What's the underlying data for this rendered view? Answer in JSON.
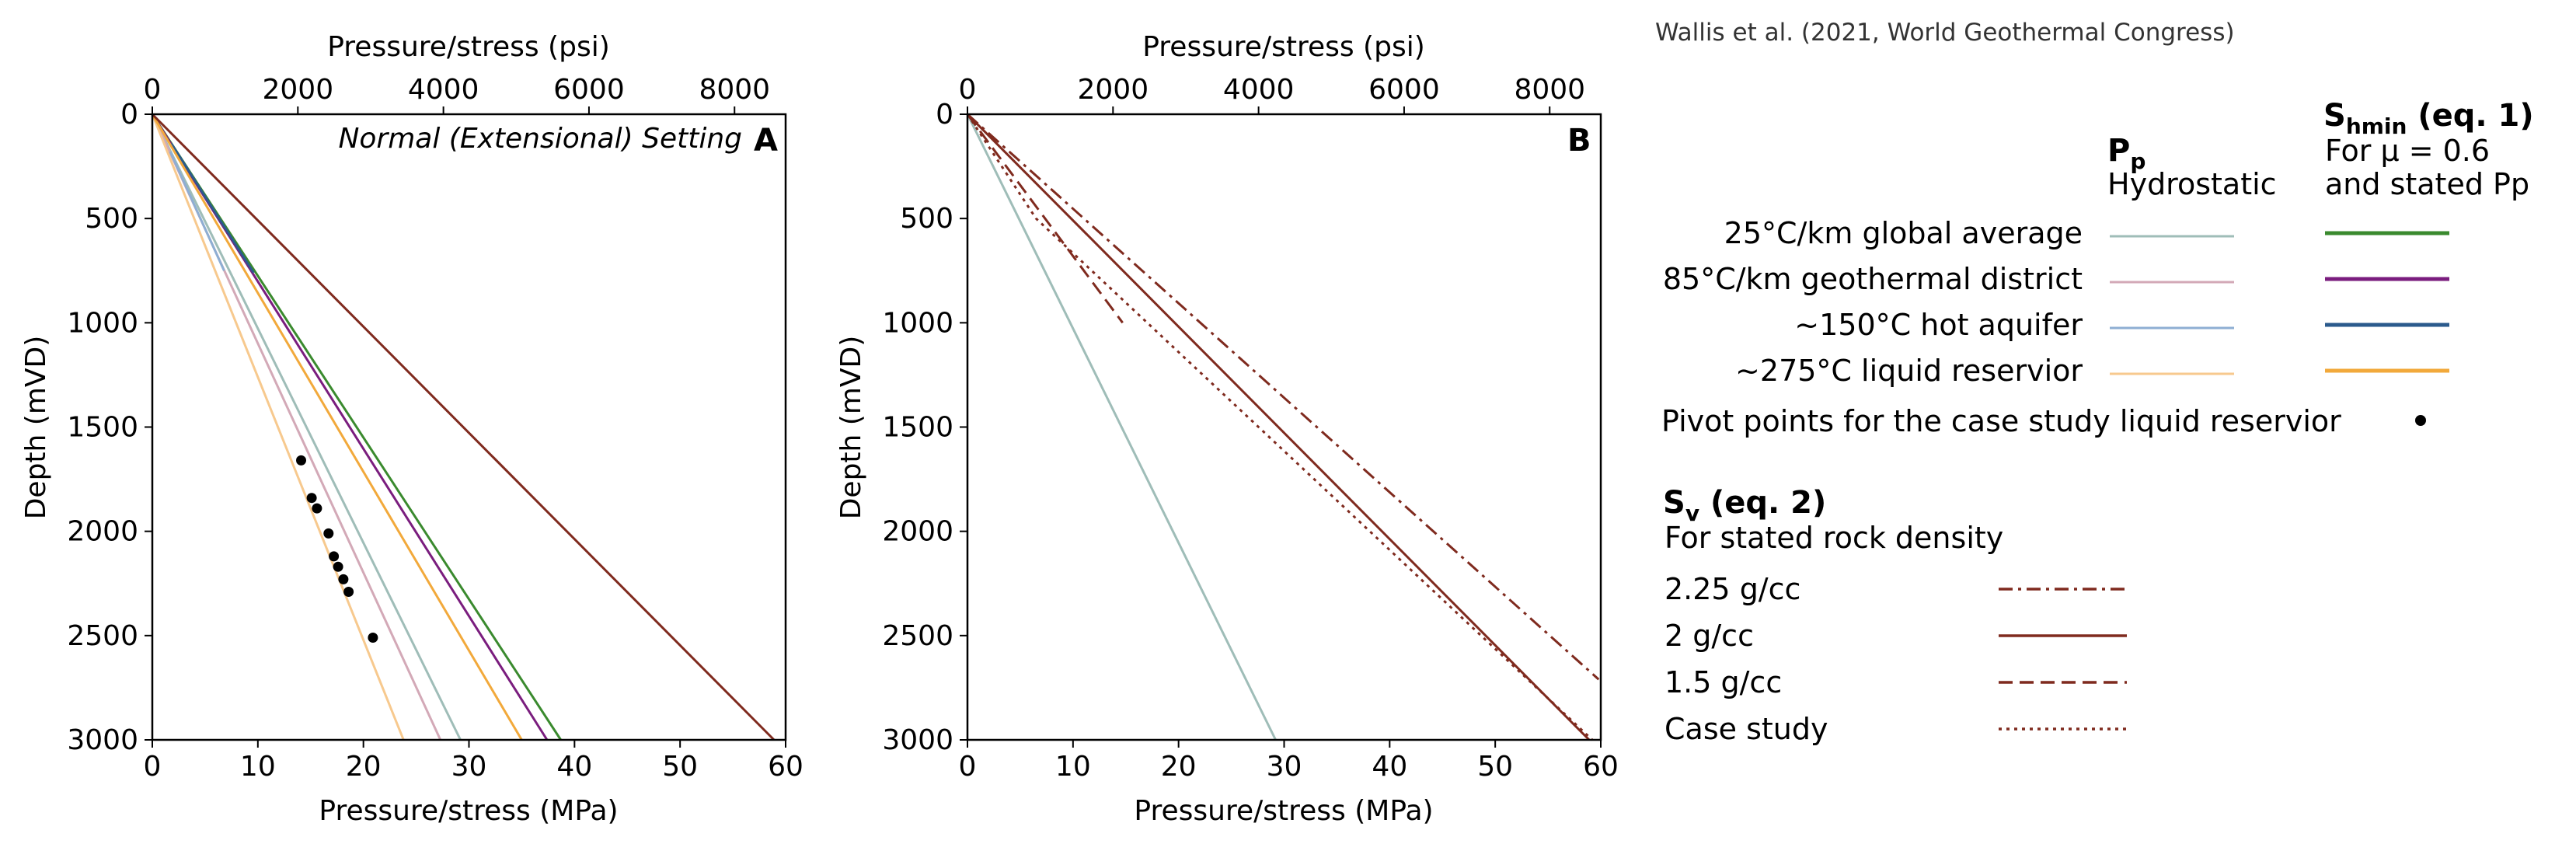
{
  "citation": "Wallis et al. (2021, World Geothermal Congress)",
  "chart_data": [
    {
      "panel": "A",
      "type": "line",
      "annotation": "Normal (Extensional) Setting",
      "xlabel": "Pressure/stress (MPa)",
      "ylabel": "Depth (mVD)",
      "top_xlabel": "Pressure/stress (psi)",
      "xlim": [
        0,
        60
      ],
      "ylim": [
        3000,
        0
      ],
      "top_xlim_psi": [
        0,
        8702
      ],
      "xticks": [
        "0",
        "10",
        "20",
        "30",
        "40",
        "50",
        "60"
      ],
      "yticks": [
        "0",
        "500",
        "1000",
        "1500",
        "2000",
        "2500",
        "3000"
      ],
      "top_xticks": [
        "0",
        "2000",
        "4000",
        "6000",
        "8000"
      ],
      "series": [
        {
          "name": "25°C/km global average",
          "group": "Pp Hydrostatic",
          "color": "#9fbdb8",
          "x": [
            0,
            29.2
          ],
          "y": [
            0,
            3000
          ]
        },
        {
          "name": "85°C/km geothermal district",
          "group": "Pp Hydrostatic",
          "color": "#d3a9b7",
          "x": [
            0,
            27.3
          ],
          "y": [
            0,
            3000
          ]
        },
        {
          "name": "~150°C hot aquifer",
          "group": "Pp Hydrostatic",
          "color": "#8eaed3",
          "x": [
            1.7,
            6.8
          ],
          "y": [
            180,
            750
          ]
        },
        {
          "name": "~275°C liquid reservior",
          "group": "Pp Hydrostatic",
          "color": "#f7c98e",
          "x": [
            0,
            23.8
          ],
          "y": [
            0,
            3000
          ]
        },
        {
          "name": "25°C/km global average",
          "group": "Shmin (eq. 1)",
          "color": "#3a8a2e",
          "x": [
            0,
            38.7
          ],
          "y": [
            0,
            3000
          ]
        },
        {
          "name": "85°C/km geothermal district",
          "group": "Shmin (eq. 1)",
          "color": "#7a1d7e",
          "x": [
            0,
            37.4
          ],
          "y": [
            0,
            3000
          ]
        },
        {
          "name": "~150°C hot aquifer",
          "group": "Shmin (eq. 1)",
          "color": "#2b5a8c",
          "x": [
            1.8,
            9.6
          ],
          "y": [
            140,
            760
          ]
        },
        {
          "name": "~275°C liquid reservior",
          "group": "Shmin (eq. 1)",
          "color": "#f2a93b",
          "x": [
            0,
            35.0
          ],
          "y": [
            0,
            3000
          ]
        },
        {
          "name": "Sv 2 g/cc",
          "group": "Sv (eq. 2)",
          "color": "#7f2a1e",
          "x": [
            0,
            58.9
          ],
          "y": [
            0,
            3000
          ]
        }
      ],
      "pivot_points": {
        "name": "Pivot points for the case study liquid reservior",
        "x": [
          14.1,
          15.1,
          15.6,
          16.7,
          17.2,
          17.6,
          18.1,
          18.6,
          20.9
        ],
        "y": [
          1660,
          1840,
          1890,
          2010,
          2120,
          2170,
          2230,
          2290,
          2510
        ]
      }
    },
    {
      "panel": "B",
      "type": "line",
      "xlabel": "Pressure/stress (MPa)",
      "ylabel": "Depth (mVD)",
      "top_xlabel": "Pressure/stress (psi)",
      "xlim": [
        0,
        60
      ],
      "ylim": [
        3000,
        0
      ],
      "top_xlim_psi": [
        0,
        8702
      ],
      "xticks": [
        "0",
        "10",
        "20",
        "30",
        "40",
        "50",
        "60"
      ],
      "yticks": [
        "0",
        "500",
        "1000",
        "1500",
        "2000",
        "2500",
        "3000"
      ],
      "top_xticks": [
        "0",
        "2000",
        "4000",
        "6000",
        "8000"
      ],
      "series": [
        {
          "name": "Hydrostatic",
          "color": "#9fbdb8",
          "style": "solid",
          "x": [
            0,
            29.2
          ],
          "y": [
            0,
            3000
          ]
        },
        {
          "name": "2.25 g/cc",
          "color": "#7f2a1e",
          "style": "dashdot",
          "x": [
            0,
            59.8
          ],
          "y": [
            0,
            2710
          ]
        },
        {
          "name": "2 g/cc",
          "color": "#7f2a1e",
          "style": "solid",
          "x": [
            0,
            58.9
          ],
          "y": [
            0,
            3000
          ]
        },
        {
          "name": "1.5 g/cc",
          "color": "#7f2a1e",
          "style": "dashed",
          "x": [
            0,
            14.7
          ],
          "y": [
            0,
            1000
          ]
        },
        {
          "name": "Case study",
          "color": "#7f2a1e",
          "style": "dotted",
          "x": [
            0,
            6.5,
            59.2
          ],
          "y": [
            0,
            500,
            3000
          ]
        }
      ]
    }
  ],
  "legend": {
    "pp_title": "P",
    "pp_sub": "p",
    "pp_subtitle": "Hydrostatic",
    "shmin_title_main": "S",
    "shmin_title_sub": "hmin",
    "shmin_title_rest": " (eq. 1)",
    "shmin_sub1": "For μ = 0.6",
    "shmin_sub2": "and stated Pp",
    "rows": [
      {
        "label": "25°C/km global average",
        "pp_color": "#9fbdb8",
        "sh_color": "#3a8a2e"
      },
      {
        "label": "85°C/km geothermal district",
        "pp_color": "#d3a9b7",
        "sh_color": "#7a1d7e"
      },
      {
        "label": "~150°C hot aquifer",
        "pp_color": "#8eaed3",
        "sh_color": "#2b5a8c"
      },
      {
        "label": "~275°C liquid reservior",
        "pp_color": "#f7c98e",
        "sh_color": "#f2a93b"
      }
    ],
    "pivot_label": "Pivot points for the case study liquid reservior",
    "sv_title_main": "S",
    "sv_title_sub": "v",
    "sv_title_rest": " (eq. 2)",
    "sv_subtitle": "For stated rock density",
    "sv_rows": [
      {
        "label": "2.25 g/cc",
        "style": "dashdot"
      },
      {
        "label": "2 g/cc",
        "style": "solid"
      },
      {
        "label": "1.5 g/cc",
        "style": "dashed"
      },
      {
        "label": "Case study",
        "style": "dotted"
      }
    ],
    "sv_color": "#7f2a1e"
  }
}
